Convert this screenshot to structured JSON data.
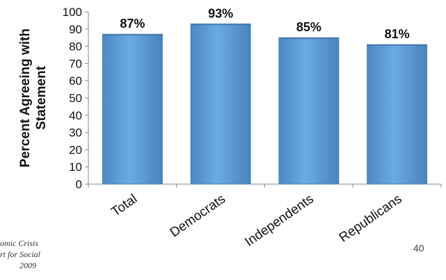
{
  "chart_data": {
    "type": "bar",
    "categories": [
      "Total",
      "Democrats",
      "Independents",
      "Republicans"
    ],
    "values": [
      87,
      93,
      85,
      81
    ],
    "data_labels": [
      "87%",
      "93%",
      "85%",
      "81%"
    ],
    "ylabel": "Percent Agreeing with Statement",
    "ylabel_lines": [
      "Percent Agreeing with",
      "Statement"
    ],
    "xlabel": "",
    "ylim": [
      0,
      100
    ],
    "yticks": [
      0,
      10,
      20,
      30,
      40,
      50,
      60,
      70,
      80,
      90,
      100
    ],
    "grid": false,
    "legend": "none",
    "bar_color": "#5f9ed6",
    "bar_edge": "#4f86bd"
  },
  "footnotes": [
    "omic Crisis",
    "rt for Social",
    "2009"
  ],
  "page_number": "40"
}
